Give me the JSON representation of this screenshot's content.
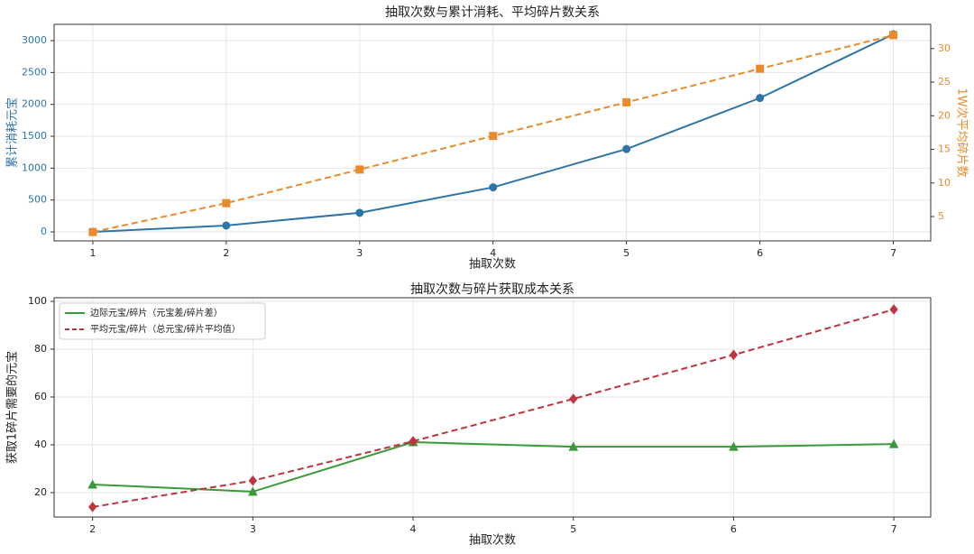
{
  "chart_data": [
    {
      "type": "line",
      "title": "抽取次数与累计消耗、平均碎片数关系",
      "xlabel": "抽取次数",
      "ylabel": "累计消耗元宝",
      "y2label": "1W次平均碎片数",
      "x": [
        1,
        2,
        3,
        4,
        5,
        6,
        7
      ],
      "series": [
        {
          "color": "#2e74a6",
          "marker": "circle",
          "linestyle": "solid",
          "values": [
            0,
            100,
            300,
            700,
            1300,
            2100,
            3100
          ]
        },
        {
          "color": "#ea8a2a",
          "marker": "square",
          "linestyle": "dashed",
          "axis": "y2",
          "values": [
            2.7,
            7,
            12,
            17,
            22,
            27,
            32
          ]
        }
      ],
      "xlim": [
        0.71,
        7.28
      ],
      "xticks": [
        1,
        2,
        3,
        4,
        5,
        6,
        7
      ],
      "ylim": [
        -141,
        3255
      ],
      "yticks": [
        0,
        500,
        1000,
        1500,
        2000,
        2500,
        3000
      ],
      "y2lim": [
        1.38,
        33.6
      ],
      "y2ticks": [
        5,
        10,
        15,
        20,
        25,
        30
      ],
      "grid": true
    },
    {
      "type": "line",
      "title": "抽取次数与碎片获取成本关系",
      "xlabel": "抽取次数",
      "ylabel": "获取1碎片需要的元宝",
      "x": [
        2,
        3,
        4,
        5,
        6,
        7
      ],
      "series": [
        {
          "name": "边际元宝/碎片（元宝差/碎片差）",
          "color": "#3a9a3a",
          "marker": "triangle",
          "linestyle": "solid",
          "values": [
            23.4,
            20.4,
            41.1,
            39.2,
            39.2,
            40.3
          ]
        },
        {
          "name": "平均元宝/碎片（总元宝/碎片平均值）",
          "color": "#c0343f",
          "marker": "diamond",
          "linestyle": "dashed",
          "values": [
            14,
            25,
            41.5,
            59.2,
            77.6,
            96.6
          ]
        }
      ],
      "xlim": [
        1.76,
        7.23
      ],
      "xticks": [
        2,
        3,
        4,
        5,
        6,
        7
      ],
      "ylim": [
        9.8,
        101.5
      ],
      "yticks": [
        20,
        40,
        60,
        80,
        100
      ],
      "grid": true,
      "legend": "upper left"
    }
  ]
}
